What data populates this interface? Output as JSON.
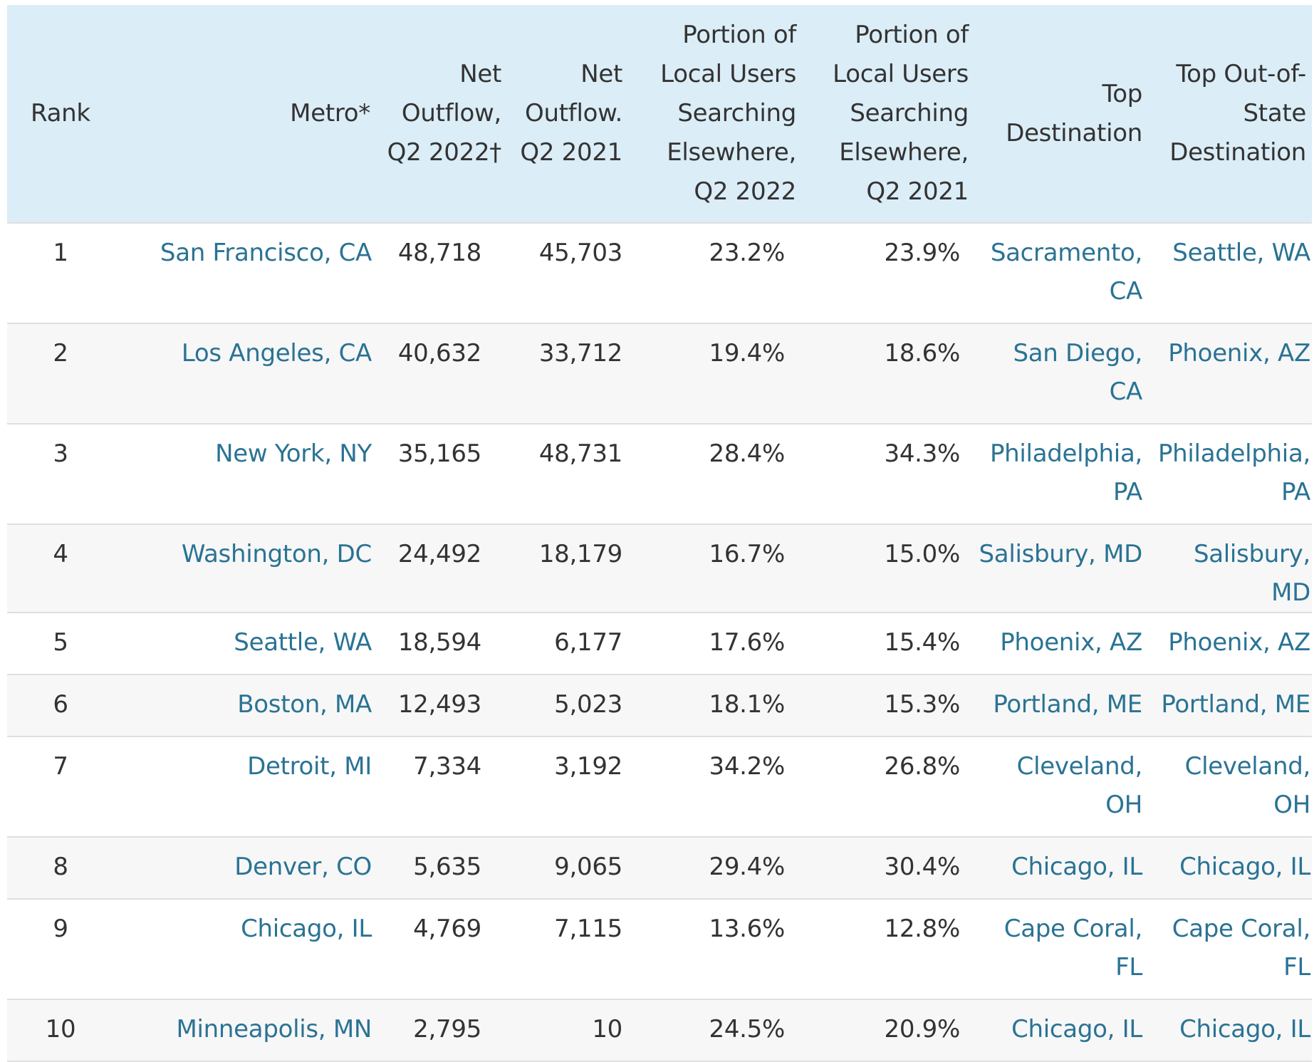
{
  "chart_data": {
    "type": "table",
    "columns": [
      "Rank",
      "Metro*",
      "Net Outflow, Q2 2022†",
      "Net Outflow. Q2 2021",
      "Portion of Local Users Searching Elsewhere, Q2 2022",
      "Portion of Local Users Searching Elsewhere, Q2 2021",
      "Top Destination",
      "Top Out-of-State Destination"
    ],
    "rows": [
      {
        "rank": "1",
        "metro": "San Francisco, CA",
        "net_outflow_2022": "48,718",
        "net_outflow_2021": "45,703",
        "portion_2022": "23.2%",
        "portion_2021": "23.9%",
        "top_destination": "Sacramento, CA",
        "top_oos_destination": "Seattle, WA"
      },
      {
        "rank": "2",
        "metro": "Los Angeles, CA",
        "net_outflow_2022": "40,632",
        "net_outflow_2021": "33,712",
        "portion_2022": "19.4%",
        "portion_2021": "18.6%",
        "top_destination": "San Diego, CA",
        "top_oos_destination": "Phoenix, AZ"
      },
      {
        "rank": "3",
        "metro": "New York, NY",
        "net_outflow_2022": "35,165",
        "net_outflow_2021": "48,731",
        "portion_2022": "28.4%",
        "portion_2021": "34.3%",
        "top_destination": "Philadelphia, PA",
        "top_oos_destination": "Philadelphia, PA"
      },
      {
        "rank": "4",
        "metro": "Washington, DC",
        "net_outflow_2022": "24,492",
        "net_outflow_2021": "18,179",
        "portion_2022": "16.7%",
        "portion_2021": "15.0%",
        "top_destination": "Salisbury, MD",
        "top_oos_destination": "Salisbury, MD"
      },
      {
        "rank": "5",
        "metro": "Seattle, WA",
        "net_outflow_2022": "18,594",
        "net_outflow_2021": "6,177",
        "portion_2022": "17.6%",
        "portion_2021": "15.4%",
        "top_destination": "Phoenix, AZ",
        "top_oos_destination": "Phoenix, AZ"
      },
      {
        "rank": "6",
        "metro": "Boston, MA",
        "net_outflow_2022": "12,493",
        "net_outflow_2021": "5,023",
        "portion_2022": "18.1%",
        "portion_2021": "15.3%",
        "top_destination": "Portland, ME",
        "top_oos_destination": "Portland, ME"
      },
      {
        "rank": "7",
        "metro": "Detroit, MI",
        "net_outflow_2022": "7,334",
        "net_outflow_2021": "3,192",
        "portion_2022": "34.2%",
        "portion_2021": "26.8%",
        "top_destination": "Cleveland, OH",
        "top_oos_destination": "Cleveland, OH"
      },
      {
        "rank": "8",
        "metro": "Denver, CO",
        "net_outflow_2022": "5,635",
        "net_outflow_2021": "9,065",
        "portion_2022": "29.4%",
        "portion_2021": "30.4%",
        "top_destination": "Chicago, IL",
        "top_oos_destination": "Chicago, IL"
      },
      {
        "rank": "9",
        "metro": "Chicago, IL",
        "net_outflow_2022": "4,769",
        "net_outflow_2021": "7,115",
        "portion_2022": "13.6%",
        "portion_2021": "12.8%",
        "top_destination": "Cape Coral, FL",
        "top_oos_destination": "Cape Coral, FL"
      },
      {
        "rank": "10",
        "metro": "Minneapolis, MN",
        "net_outflow_2022": "2,795",
        "net_outflow_2021": "10",
        "portion_2022": "24.5%",
        "portion_2021": "20.9%",
        "top_destination": "Chicago, IL",
        "top_oos_destination": "Chicago, IL"
      }
    ]
  },
  "colors": {
    "header_background": "#dbedf6",
    "link_text": "#2a7394",
    "body_text": "#333333",
    "alternate_row": "#f7f7f7",
    "row_divider": "#dfdfdf"
  }
}
